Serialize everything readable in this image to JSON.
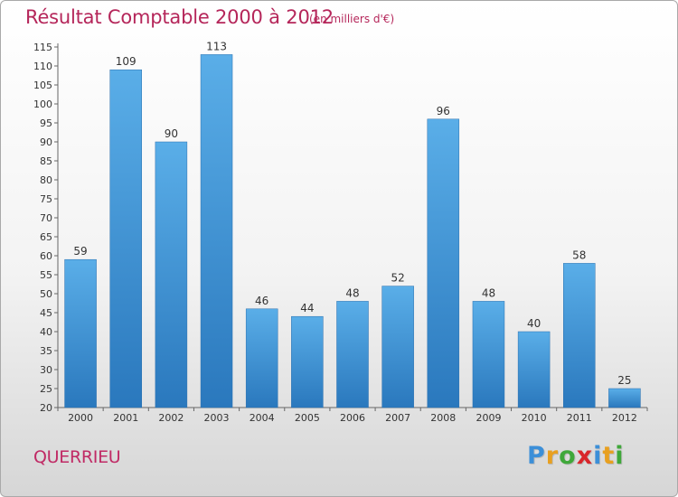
{
  "title": "Résultat Comptable 2000 à 2012",
  "subtitle": "(en milliers d'€)",
  "commune": "QUERRIEU",
  "logo": {
    "letters": [
      "P",
      "r",
      "o",
      "x",
      "i",
      "t",
      "i"
    ],
    "colors": [
      "#3c8fd8",
      "#e8a020",
      "#3fa83a",
      "#d9262b",
      "#3c8fd8",
      "#e8a020",
      "#3fa83a"
    ]
  },
  "chart_data": {
    "type": "bar",
    "categories": [
      "2000",
      "2001",
      "2002",
      "2003",
      "2004",
      "2005",
      "2006",
      "2007",
      "2008",
      "2009",
      "2010",
      "2011",
      "2012"
    ],
    "values": [
      59,
      109,
      90,
      113,
      46,
      44,
      48,
      52,
      96,
      48,
      40,
      58,
      25
    ],
    "ylim": [
      20,
      115
    ],
    "yticks": [
      20,
      25,
      30,
      35,
      40,
      45,
      50,
      55,
      60,
      65,
      70,
      75,
      80,
      85,
      90,
      95,
      100,
      105,
      110,
      115
    ],
    "grid": false,
    "bar_color_light": "#5aaee8",
    "bar_color_dark": "#2a78bd"
  }
}
